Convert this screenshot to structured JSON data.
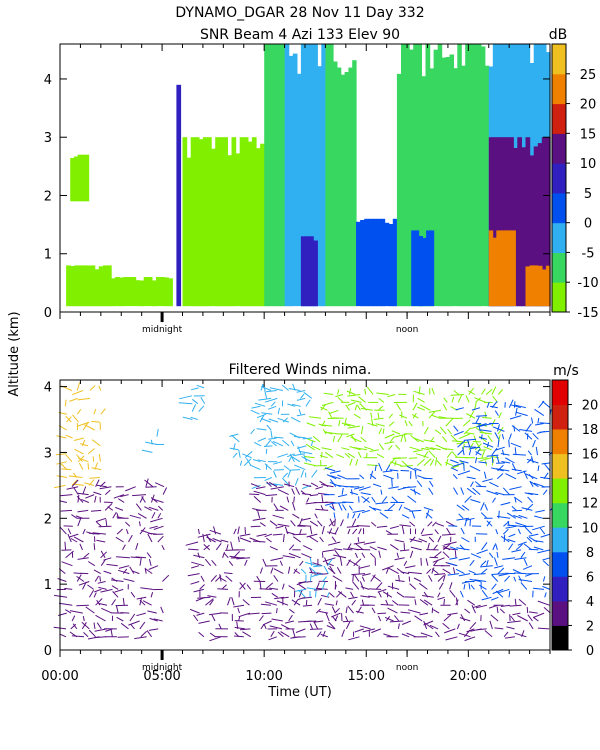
{
  "header": {
    "title": "DYNAMO_DGAR   28 Nov 11  Day 332",
    "subtitle": "SNR Beam 4 Azi 133 Elev 90"
  },
  "shared": {
    "ylabel": "Altitude (km)",
    "xlabel": "Time (UT)",
    "x_ticks": [
      "00:00",
      "05:00",
      "10:00",
      "15:00",
      "20:00"
    ],
    "time_markers": [
      "midnight",
      "noon"
    ]
  },
  "chart_data": [
    {
      "type": "heatmap",
      "title": "SNR Beam 4 Azi 133 Elev 90",
      "xlabel": "Time (UT)",
      "ylabel": "Altitude (km)",
      "xlim": [
        0,
        24
      ],
      "ylim": [
        0,
        4.6
      ],
      "y_ticks": [
        0,
        1,
        2,
        3,
        4
      ],
      "colorbar": {
        "unit": "dB",
        "ticks": [
          -15,
          -10,
          -5,
          0,
          5,
          10,
          15,
          20,
          25
        ],
        "range": [
          -15,
          30
        ],
        "colors": [
          "#80f000",
          "#38d860",
          "#30b0f0",
          "#0050f0",
          "#3020c0",
          "#5a1080",
          "#d02010",
          "#f08000",
          "#f0c020"
        ]
      },
      "regions": [
        {
          "time": [
            0.3,
            2.5
          ],
          "alt": [
            0.1,
            0.8
          ],
          "snr": -12
        },
        {
          "time": [
            0.5,
            1.4
          ],
          "alt": [
            1.9,
            2.7
          ],
          "snr": -14
        },
        {
          "time": [
            2.5,
            5.5
          ],
          "alt": [
            0.1,
            0.6
          ],
          "snr": -12
        },
        {
          "time": [
            5.7,
            5.9
          ],
          "alt": [
            0.1,
            3.9
          ],
          "snr": 8
        },
        {
          "time": [
            6.0,
            10.0
          ],
          "alt": [
            0.1,
            3.0
          ],
          "snr": -12
        },
        {
          "time": [
            10.0,
            11.0
          ],
          "alt": [
            0.1,
            4.6
          ],
          "snr": -10
        },
        {
          "time": [
            11.0,
            13.0
          ],
          "alt": [
            0.1,
            4.6
          ],
          "snr": -5
        },
        {
          "time": [
            11.8,
            12.6
          ],
          "alt": [
            0.1,
            1.3
          ],
          "snr": 5
        },
        {
          "time": [
            13.0,
            14.5
          ],
          "alt": [
            0.1,
            4.6
          ],
          "snr": -8
        },
        {
          "time": [
            14.5,
            16.5
          ],
          "alt": [
            0.1,
            1.6
          ],
          "snr": 3
        },
        {
          "time": [
            16.5,
            18.5
          ],
          "alt": [
            0.1,
            4.6
          ],
          "snr": -6
        },
        {
          "time": [
            17.2,
            18.3
          ],
          "alt": [
            0.1,
            1.4
          ],
          "snr": 2
        },
        {
          "time": [
            18.5,
            21.0
          ],
          "alt": [
            0.1,
            4.6
          ],
          "snr": -10
        },
        {
          "time": [
            21.0,
            24.0
          ],
          "alt": [
            0.1,
            4.6
          ],
          "snr": -2
        },
        {
          "time": [
            21.0,
            24.0
          ],
          "alt": [
            0.1,
            3.0
          ],
          "snr": 11
        },
        {
          "time": [
            21.0,
            22.3
          ],
          "alt": [
            0.1,
            1.4
          ],
          "snr": 20
        },
        {
          "time": [
            22.8,
            24.0
          ],
          "alt": [
            0.1,
            0.8
          ],
          "snr": 22
        }
      ]
    },
    {
      "type": "scatter",
      "title": "Filtered Winds nima.",
      "xlabel": "Time (UT)",
      "ylabel": "Altitude (km)",
      "xlim": [
        0,
        24
      ],
      "ylim": [
        0,
        4.1
      ],
      "y_ticks": [
        0,
        1,
        2,
        3,
        4
      ],
      "colorbar": {
        "unit": "m/s",
        "ticks": [
          0,
          2,
          4,
          6,
          8,
          10,
          12,
          14,
          16,
          18,
          20
        ],
        "range": [
          0,
          22
        ],
        "colors": [
          "#000000",
          "#5a1080",
          "#3020c0",
          "#0050f0",
          "#30b0f0",
          "#38d860",
          "#80f000",
          "#f0c020",
          "#f08000",
          "#d02010",
          "#e00000"
        ]
      },
      "wind_regions": [
        {
          "time": [
            0.3,
            2.0
          ],
          "alt": [
            2.5,
            4.0
          ],
          "speed": 14
        },
        {
          "time": [
            0.3,
            5.2
          ],
          "alt": [
            0.2,
            2.5
          ],
          "speed": 3
        },
        {
          "time": [
            4.5,
            5.2
          ],
          "alt": [
            3.0,
            3.3
          ],
          "speed": 8
        },
        {
          "time": [
            6.5,
            7.3
          ],
          "alt": [
            3.5,
            4.0
          ],
          "speed": 9
        },
        {
          "time": [
            6.8,
            9.5
          ],
          "alt": [
            0.2,
            1.8
          ],
          "speed": 3
        },
        {
          "time": [
            8.5,
            9.5
          ],
          "alt": [
            2.8,
            3.3
          ],
          "speed": 8
        },
        {
          "time": [
            9.8,
            12.5
          ],
          "alt": [
            2.5,
            4.0
          ],
          "speed": 8
        },
        {
          "time": [
            9.8,
            13.5
          ],
          "alt": [
            0.2,
            2.5
          ],
          "speed": 3
        },
        {
          "time": [
            12.0,
            13.2
          ],
          "alt": [
            0.8,
            1.3
          ],
          "speed": 8
        },
        {
          "time": [
            12.5,
            21.5
          ],
          "alt": [
            2.8,
            4.0
          ],
          "speed": 13
        },
        {
          "time": [
            13.5,
            18.5
          ],
          "alt": [
            2.0,
            2.8
          ],
          "speed": 6
        },
        {
          "time": [
            13.5,
            19.5
          ],
          "alt": [
            0.2,
            2.0
          ],
          "speed": 3
        },
        {
          "time": [
            19.5,
            24.0
          ],
          "alt": [
            0.8,
            3.8
          ],
          "speed": 7
        },
        {
          "time": [
            19.5,
            24.0
          ],
          "alt": [
            0.2,
            0.8
          ],
          "speed": 3
        }
      ]
    }
  ]
}
